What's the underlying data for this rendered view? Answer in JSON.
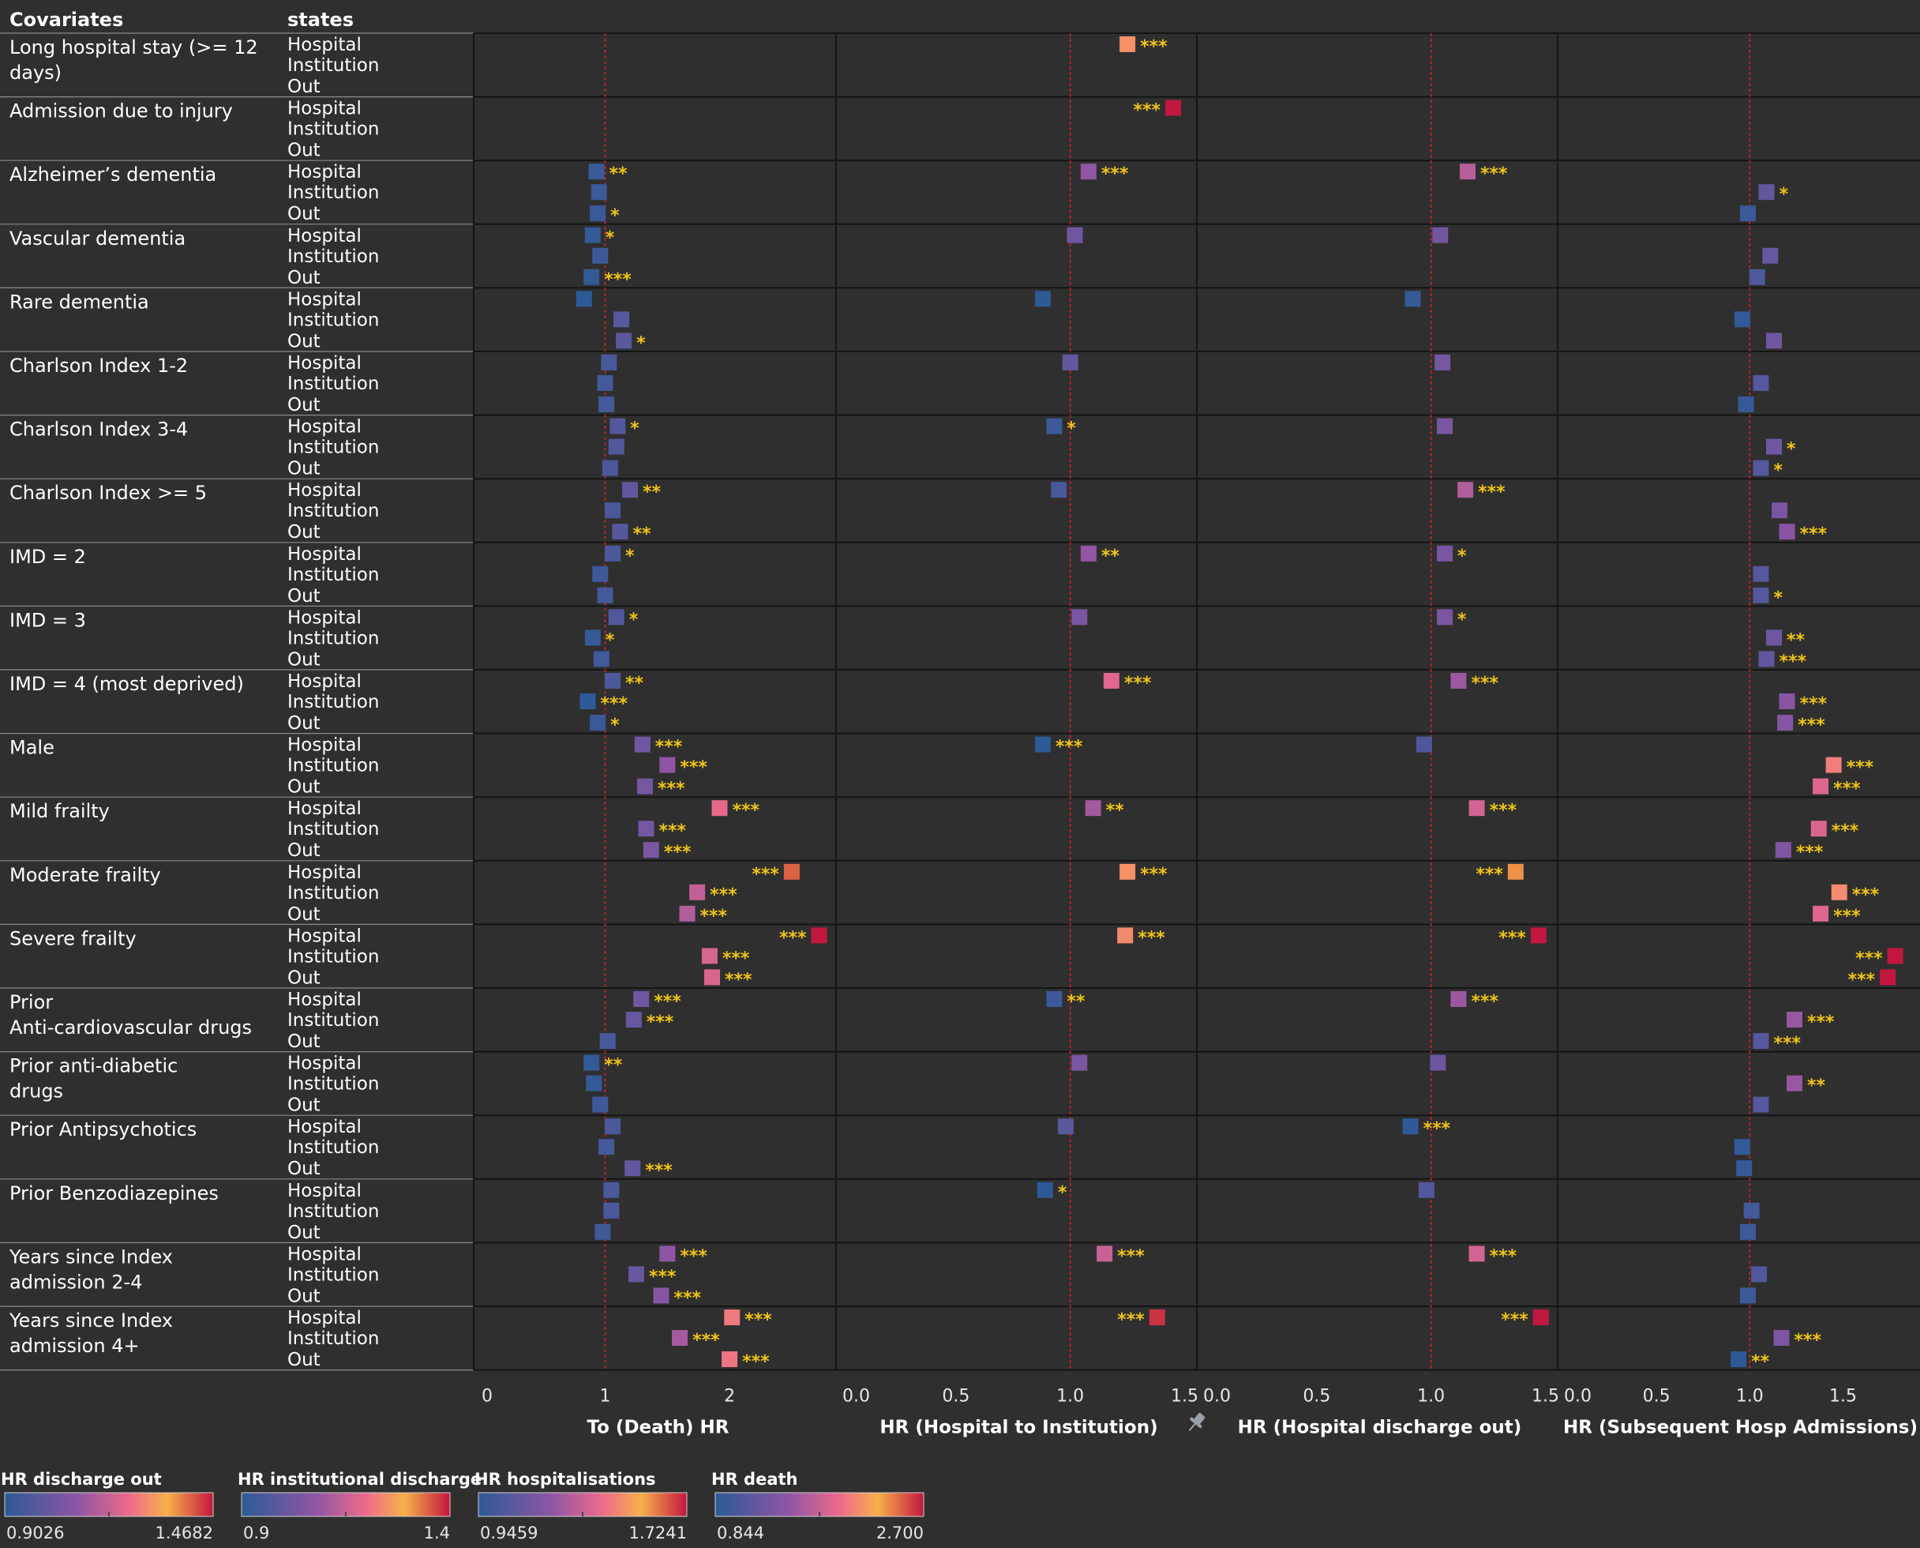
{
  "header": {
    "covariates": "Covariates",
    "states": "states"
  },
  "colors": {
    "background": "#2f2f2f",
    "refline": "#d0202e",
    "sig": "#f0c419",
    "gridline": "#141414"
  },
  "chart_data": {
    "type": "forest",
    "states": [
      "Hospital",
      "Institution",
      "Out"
    ],
    "covariates": [
      "Long hospital stay (>= 12 days)",
      "Admission due to injury",
      "Alzheimer’s dementia",
      "Vascular dementia",
      "Rare dementia",
      "Charlson Index 1-2",
      "Charlson Index 3-4",
      "Charlson Index >= 5",
      "IMD  = 2",
      "IMD  = 3",
      "IMD  = 4  (most deprived)",
      "Male",
      "Mild frailty",
      "Moderate frailty",
      "Severe frailty",
      "Prior  Anti-cardiovascular drugs",
      "Prior  anti-diabetic drugs",
      "Prior Antipsychotics",
      "Prior Benzodiazepines",
      "Years since Index admission 2-4",
      "Years since Index admission 4+"
    ],
    "panels": [
      {
        "xlabel": "To (Death) HR",
        "xlim": [
          0,
          2.85
        ],
        "ticks": [
          "0",
          "1",
          "2"
        ],
        "tick_values": [
          0,
          1,
          2
        ],
        "reference": 1,
        "scale_min": 0.844,
        "scale_max": 2.7,
        "points": [
          {
            "c": 2,
            "s": 0,
            "v": 0.93,
            "sig": "**"
          },
          {
            "c": 2,
            "s": 1,
            "v": 0.95,
            "sig": ""
          },
          {
            "c": 2,
            "s": 2,
            "v": 0.94,
            "sig": "*"
          },
          {
            "c": 3,
            "s": 0,
            "v": 0.9,
            "sig": "*"
          },
          {
            "c": 3,
            "s": 1,
            "v": 0.96,
            "sig": ""
          },
          {
            "c": 3,
            "s": 2,
            "v": 0.89,
            "sig": "***"
          },
          {
            "c": 4,
            "s": 0,
            "v": 0.83,
            "sig": ""
          },
          {
            "c": 4,
            "s": 1,
            "v": 1.13,
            "sig": ""
          },
          {
            "c": 4,
            "s": 2,
            "v": 1.15,
            "sig": "*"
          },
          {
            "c": 5,
            "s": 0,
            "v": 1.03,
            "sig": ""
          },
          {
            "c": 5,
            "s": 1,
            "v": 1.0,
            "sig": ""
          },
          {
            "c": 5,
            "s": 2,
            "v": 1.01,
            "sig": ""
          },
          {
            "c": 6,
            "s": 0,
            "v": 1.1,
            "sig": "*"
          },
          {
            "c": 6,
            "s": 1,
            "v": 1.09,
            "sig": ""
          },
          {
            "c": 6,
            "s": 2,
            "v": 1.04,
            "sig": ""
          },
          {
            "c": 7,
            "s": 0,
            "v": 1.2,
            "sig": "**"
          },
          {
            "c": 7,
            "s": 1,
            "v": 1.06,
            "sig": ""
          },
          {
            "c": 7,
            "s": 2,
            "v": 1.12,
            "sig": "**"
          },
          {
            "c": 8,
            "s": 0,
            "v": 1.06,
            "sig": "*"
          },
          {
            "c": 8,
            "s": 1,
            "v": 0.96,
            "sig": ""
          },
          {
            "c": 8,
            "s": 2,
            "v": 1.0,
            "sig": ""
          },
          {
            "c": 9,
            "s": 0,
            "v": 1.09,
            "sig": "*"
          },
          {
            "c": 9,
            "s": 1,
            "v": 0.9,
            "sig": "*"
          },
          {
            "c": 9,
            "s": 2,
            "v": 0.97,
            "sig": ""
          },
          {
            "c": 10,
            "s": 0,
            "v": 1.06,
            "sig": "**"
          },
          {
            "c": 10,
            "s": 1,
            "v": 0.86,
            "sig": "***"
          },
          {
            "c": 10,
            "s": 2,
            "v": 0.94,
            "sig": "*"
          },
          {
            "c": 11,
            "s": 0,
            "v": 1.3,
            "sig": "***"
          },
          {
            "c": 11,
            "s": 1,
            "v": 1.5,
            "sig": "***"
          },
          {
            "c": 11,
            "s": 2,
            "v": 1.32,
            "sig": "***"
          },
          {
            "c": 12,
            "s": 0,
            "v": 1.92,
            "sig": "***"
          },
          {
            "c": 12,
            "s": 1,
            "v": 1.33,
            "sig": "***"
          },
          {
            "c": 12,
            "s": 2,
            "v": 1.37,
            "sig": "***"
          },
          {
            "c": 13,
            "s": 0,
            "v": 2.5,
            "sig": "***"
          },
          {
            "c": 13,
            "s": 1,
            "v": 1.74,
            "sig": "***"
          },
          {
            "c": 13,
            "s": 2,
            "v": 1.66,
            "sig": "***"
          },
          {
            "c": 14,
            "s": 0,
            "v": 2.72,
            "sig": "***"
          },
          {
            "c": 14,
            "s": 1,
            "v": 1.84,
            "sig": "***"
          },
          {
            "c": 14,
            "s": 2,
            "v": 1.86,
            "sig": "***"
          },
          {
            "c": 15,
            "s": 0,
            "v": 1.29,
            "sig": "***"
          },
          {
            "c": 15,
            "s": 1,
            "v": 1.23,
            "sig": "***"
          },
          {
            "c": 15,
            "s": 2,
            "v": 1.02,
            "sig": ""
          },
          {
            "c": 16,
            "s": 0,
            "v": 0.89,
            "sig": "**"
          },
          {
            "c": 16,
            "s": 1,
            "v": 0.91,
            "sig": ""
          },
          {
            "c": 16,
            "s": 2,
            "v": 0.96,
            "sig": ""
          },
          {
            "c": 17,
            "s": 0,
            "v": 1.06,
            "sig": ""
          },
          {
            "c": 17,
            "s": 1,
            "v": 1.01,
            "sig": ""
          },
          {
            "c": 17,
            "s": 2,
            "v": 1.22,
            "sig": "***"
          },
          {
            "c": 18,
            "s": 0,
            "v": 1.05,
            "sig": ""
          },
          {
            "c": 18,
            "s": 1,
            "v": 1.05,
            "sig": ""
          },
          {
            "c": 18,
            "s": 2,
            "v": 0.98,
            "sig": ""
          },
          {
            "c": 19,
            "s": 0,
            "v": 1.5,
            "sig": "***"
          },
          {
            "c": 19,
            "s": 1,
            "v": 1.25,
            "sig": "***"
          },
          {
            "c": 19,
            "s": 2,
            "v": 1.45,
            "sig": "***"
          },
          {
            "c": 20,
            "s": 0,
            "v": 2.02,
            "sig": "***"
          },
          {
            "c": 20,
            "s": 1,
            "v": 1.6,
            "sig": "***"
          },
          {
            "c": 20,
            "s": 2,
            "v": 2.0,
            "sig": "***"
          }
        ]
      },
      {
        "xlabel": "HR  (Hospital to Institution)",
        "xlim": [
          0,
          1.55
        ],
        "ticks": [
          "0.0",
          "0.5",
          "1.0",
          "1.5"
        ],
        "tick_values": [
          0,
          0.5,
          1.0,
          1.5
        ],
        "reference": 1,
        "scale_min": 0.9,
        "scale_max": 1.4,
        "pin_icon": "pin-icon",
        "points": [
          {
            "c": 0,
            "s": 0,
            "v": 1.25,
            "sig": "***"
          },
          {
            "c": 1,
            "s": 0,
            "v": 1.45,
            "sig": "***"
          },
          {
            "c": 2,
            "s": 0,
            "v": 1.08,
            "sig": "***"
          },
          {
            "c": 3,
            "s": 0,
            "v": 1.02,
            "sig": ""
          },
          {
            "c": 4,
            "s": 0,
            "v": 0.88,
            "sig": ""
          },
          {
            "c": 5,
            "s": 0,
            "v": 1.0,
            "sig": ""
          },
          {
            "c": 6,
            "s": 0,
            "v": 0.93,
            "sig": "*"
          },
          {
            "c": 7,
            "s": 0,
            "v": 0.95,
            "sig": ""
          },
          {
            "c": 8,
            "s": 0,
            "v": 1.08,
            "sig": "**"
          },
          {
            "c": 9,
            "s": 0,
            "v": 1.04,
            "sig": ""
          },
          {
            "c": 10,
            "s": 0,
            "v": 1.18,
            "sig": "***"
          },
          {
            "c": 11,
            "s": 0,
            "v": 0.88,
            "sig": "***"
          },
          {
            "c": 12,
            "s": 0,
            "v": 1.1,
            "sig": "**"
          },
          {
            "c": 13,
            "s": 0,
            "v": 1.25,
            "sig": "***"
          },
          {
            "c": 14,
            "s": 0,
            "v": 1.24,
            "sig": "***"
          },
          {
            "c": 15,
            "s": 0,
            "v": 0.93,
            "sig": "**"
          },
          {
            "c": 16,
            "s": 0,
            "v": 1.04,
            "sig": ""
          },
          {
            "c": 17,
            "s": 0,
            "v": 0.98,
            "sig": ""
          },
          {
            "c": 18,
            "s": 0,
            "v": 0.89,
            "sig": "*"
          },
          {
            "c": 19,
            "s": 0,
            "v": 1.15,
            "sig": "***"
          },
          {
            "c": 20,
            "s": 0,
            "v": 1.38,
            "sig": "***"
          }
        ]
      },
      {
        "xlabel": "HR (Hospital discharge out)",
        "xlim": [
          0,
          1.55
        ],
        "ticks": [
          "0.0",
          "0.5",
          "1.0",
          "1.5"
        ],
        "tick_values": [
          0,
          0.5,
          1.0,
          1.5
        ],
        "reference": 1,
        "scale_min": 0.9026,
        "scale_max": 1.4682,
        "points": [
          {
            "c": 2,
            "s": 0,
            "v": 1.16,
            "sig": "***"
          },
          {
            "c": 3,
            "s": 0,
            "v": 1.04,
            "sig": ""
          },
          {
            "c": 4,
            "s": 0,
            "v": 0.92,
            "sig": ""
          },
          {
            "c": 5,
            "s": 0,
            "v": 1.05,
            "sig": ""
          },
          {
            "c": 6,
            "s": 0,
            "v": 1.06,
            "sig": ""
          },
          {
            "c": 7,
            "s": 0,
            "v": 1.15,
            "sig": "***"
          },
          {
            "c": 8,
            "s": 0,
            "v": 1.06,
            "sig": "*"
          },
          {
            "c": 9,
            "s": 0,
            "v": 1.06,
            "sig": "*"
          },
          {
            "c": 10,
            "s": 0,
            "v": 1.12,
            "sig": "***"
          },
          {
            "c": 11,
            "s": 0,
            "v": 0.97,
            "sig": ""
          },
          {
            "c": 12,
            "s": 0,
            "v": 1.2,
            "sig": "***"
          },
          {
            "c": 13,
            "s": 0,
            "v": 1.37,
            "sig": "***"
          },
          {
            "c": 14,
            "s": 0,
            "v": 1.47,
            "sig": "***"
          },
          {
            "c": 15,
            "s": 0,
            "v": 1.12,
            "sig": "***"
          },
          {
            "c": 16,
            "s": 0,
            "v": 1.03,
            "sig": ""
          },
          {
            "c": 17,
            "s": 0,
            "v": 0.91,
            "sig": "***"
          },
          {
            "c": 18,
            "s": 0,
            "v": 0.98,
            "sig": ""
          },
          {
            "c": 19,
            "s": 0,
            "v": 1.2,
            "sig": "***"
          },
          {
            "c": 20,
            "s": 0,
            "v": 1.48,
            "sig": "***"
          }
        ]
      },
      {
        "xlabel": "HR (Subsequent Hosp Admissions)",
        "xlim": [
          0,
          1.9
        ],
        "ticks": [
          "0.0",
          "0.5",
          "1.0",
          "1.5"
        ],
        "tick_values": [
          0,
          0.5,
          1.0,
          1.5
        ],
        "reference": 1,
        "scale_min": 0.9459,
        "scale_max": 1.7241,
        "points": [
          {
            "c": 2,
            "s": 1,
            "v": 1.09,
            "sig": "*"
          },
          {
            "c": 2,
            "s": 2,
            "v": 0.99,
            "sig": ""
          },
          {
            "c": 3,
            "s": 1,
            "v": 1.11,
            "sig": ""
          },
          {
            "c": 3,
            "s": 2,
            "v": 1.04,
            "sig": ""
          },
          {
            "c": 4,
            "s": 1,
            "v": 0.96,
            "sig": ""
          },
          {
            "c": 4,
            "s": 2,
            "v": 1.13,
            "sig": ""
          },
          {
            "c": 5,
            "s": 1,
            "v": 1.06,
            "sig": ""
          },
          {
            "c": 5,
            "s": 2,
            "v": 0.98,
            "sig": ""
          },
          {
            "c": 6,
            "s": 1,
            "v": 1.13,
            "sig": "*"
          },
          {
            "c": 6,
            "s": 2,
            "v": 1.06,
            "sig": "*"
          },
          {
            "c": 7,
            "s": 1,
            "v": 1.16,
            "sig": ""
          },
          {
            "c": 7,
            "s": 2,
            "v": 1.2,
            "sig": "***"
          },
          {
            "c": 8,
            "s": 1,
            "v": 1.06,
            "sig": ""
          },
          {
            "c": 8,
            "s": 2,
            "v": 1.06,
            "sig": "*"
          },
          {
            "c": 9,
            "s": 1,
            "v": 1.13,
            "sig": "**"
          },
          {
            "c": 9,
            "s": 2,
            "v": 1.09,
            "sig": "***"
          },
          {
            "c": 10,
            "s": 1,
            "v": 1.2,
            "sig": "***"
          },
          {
            "c": 10,
            "s": 2,
            "v": 1.19,
            "sig": "***"
          },
          {
            "c": 11,
            "s": 1,
            "v": 1.45,
            "sig": "***"
          },
          {
            "c": 11,
            "s": 2,
            "v": 1.38,
            "sig": "***"
          },
          {
            "c": 12,
            "s": 1,
            "v": 1.37,
            "sig": "***"
          },
          {
            "c": 12,
            "s": 2,
            "v": 1.18,
            "sig": "***"
          },
          {
            "c": 13,
            "s": 1,
            "v": 1.48,
            "sig": "***"
          },
          {
            "c": 13,
            "s": 2,
            "v": 1.38,
            "sig": "***"
          },
          {
            "c": 14,
            "s": 1,
            "v": 1.78,
            "sig": "***"
          },
          {
            "c": 14,
            "s": 2,
            "v": 1.74,
            "sig": "***"
          },
          {
            "c": 15,
            "s": 1,
            "v": 1.24,
            "sig": "***"
          },
          {
            "c": 15,
            "s": 2,
            "v": 1.06,
            "sig": "***"
          },
          {
            "c": 16,
            "s": 1,
            "v": 1.24,
            "sig": "**"
          },
          {
            "c": 16,
            "s": 2,
            "v": 1.06,
            "sig": ""
          },
          {
            "c": 17,
            "s": 1,
            "v": 0.96,
            "sig": ""
          },
          {
            "c": 17,
            "s": 2,
            "v": 0.97,
            "sig": ""
          },
          {
            "c": 18,
            "s": 1,
            "v": 1.01,
            "sig": ""
          },
          {
            "c": 18,
            "s": 2,
            "v": 0.99,
            "sig": ""
          },
          {
            "c": 19,
            "s": 1,
            "v": 1.05,
            "sig": ""
          },
          {
            "c": 19,
            "s": 2,
            "v": 0.99,
            "sig": ""
          },
          {
            "c": 20,
            "s": 1,
            "v": 1.17,
            "sig": "***"
          },
          {
            "c": 20,
            "s": 2,
            "v": 0.94,
            "sig": "**"
          }
        ]
      }
    ]
  },
  "legends": [
    {
      "title": "HR discharge out",
      "min": "0.9026",
      "max": "1.4682"
    },
    {
      "title": "HR institutional discharge",
      "min": "0.9",
      "max": "1.4"
    },
    {
      "title": "HR hospitalisations",
      "min": "0.9459",
      "max": "1.7241"
    },
    {
      "title": "HR death",
      "min": "0.844",
      "max": "2.700"
    }
  ]
}
